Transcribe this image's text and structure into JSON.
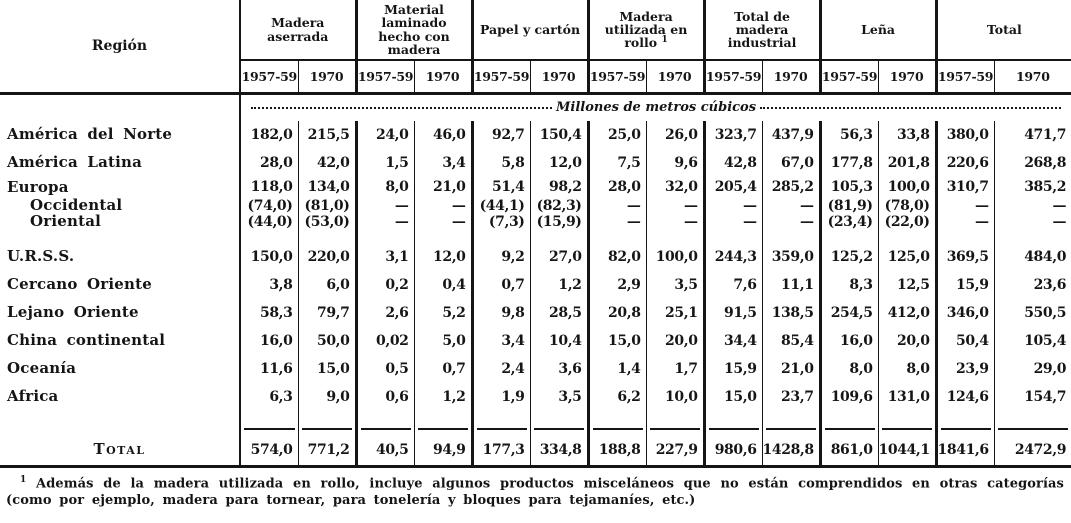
{
  "colors": {
    "ink": "#151515",
    "paper": "#ffffff"
  },
  "table": {
    "region_header": "Región",
    "units_note": "Millones de metros cúbicos",
    "col_groups": [
      {
        "label": "Madera aserrada",
        "sup": ""
      },
      {
        "label": "Material laminado hecho con madera",
        "sup": ""
      },
      {
        "label": "Papel y cartón",
        "sup": ""
      },
      {
        "label": "Madera utilizada en rollo",
        "sup": "1"
      },
      {
        "label": "Total de madera industrial",
        "sup": ""
      },
      {
        "label": "Leña",
        "sup": ""
      },
      {
        "label": "Total",
        "sup": ""
      }
    ],
    "year_labels": [
      "1957-59",
      "1970"
    ],
    "rows": [
      {
        "region": "América del Norte",
        "indent": false,
        "values": [
          "182,0",
          "215,5",
          "24,0",
          "46,0",
          "92,7",
          "150,4",
          "25,0",
          "26,0",
          "323,7",
          "437,9",
          "56,3",
          "33,8",
          "380,0",
          "471,7"
        ]
      },
      {
        "region": "América Latina",
        "indent": false,
        "values": [
          "28,0",
          "42,0",
          "1,5",
          "3,4",
          "5,8",
          "12,0",
          "7,5",
          "9,6",
          "42,8",
          "67,0",
          "177,8",
          "201,8",
          "220,6",
          "268,8"
        ]
      },
      {
        "region": "Europa",
        "indent": false,
        "values": [
          "118,0",
          "134,0",
          "8,0",
          "21,0",
          "51,4",
          "98,2",
          "28,0",
          "32,0",
          "205,4",
          "285,2",
          "105,3",
          "100,0",
          "310,7",
          "385,2"
        ]
      },
      {
        "region": "Occidental",
        "indent": true,
        "values": [
          "(74,0)",
          "(81,0)",
          "—",
          "—",
          "(44,1)",
          "(82,3)",
          "—",
          "—",
          "—",
          "—",
          "(81,9)",
          "(78,0)",
          "—",
          "—"
        ]
      },
      {
        "region": "Oriental",
        "indent": true,
        "values": [
          "(44,0)",
          "(53,0)",
          "—",
          "—",
          "(7,3)",
          "(15,9)",
          "—",
          "—",
          "—",
          "—",
          "(23,4)",
          "(22,0)",
          "—",
          "—"
        ]
      },
      {
        "region": "U.R.S.S.",
        "indent": false,
        "values": [
          "150,0",
          "220,0",
          "3,1",
          "12,0",
          "9,2",
          "27,0",
          "82,0",
          "100,0",
          "244,3",
          "359,0",
          "125,2",
          "125,0",
          "369,5",
          "484,0"
        ]
      },
      {
        "region": "Cercano Oriente",
        "indent": false,
        "values": [
          "3,8",
          "6,0",
          "0,2",
          "0,4",
          "0,7",
          "1,2",
          "2,9",
          "3,5",
          "7,6",
          "11,1",
          "8,3",
          "12,5",
          "15,9",
          "23,6"
        ]
      },
      {
        "region": "Lejano Oriente",
        "indent": false,
        "values": [
          "58,3",
          "79,7",
          "2,6",
          "5,2",
          "9,8",
          "28,5",
          "20,8",
          "25,1",
          "91,5",
          "138,5",
          "254,5",
          "412,0",
          "346,0",
          "550,5"
        ]
      },
      {
        "region": "China continental",
        "indent": false,
        "values": [
          "16,0",
          "50,0",
          "0,02",
          "5,0",
          "3,4",
          "10,4",
          "15,0",
          "20,0",
          "34,4",
          "85,4",
          "16,0",
          "20,0",
          "50,4",
          "105,4"
        ]
      },
      {
        "region": "Oceanía",
        "indent": false,
        "values": [
          "11,6",
          "15,0",
          "0,5",
          "0,7",
          "2,4",
          "3,6",
          "1,4",
          "1,7",
          "15,9",
          "21,0",
          "8,0",
          "8,0",
          "23,9",
          "29,0"
        ]
      },
      {
        "region": "Africa",
        "indent": false,
        "values": [
          "6,3",
          "9,0",
          "0,6",
          "1,2",
          "1,9",
          "3,5",
          "6,2",
          "10,0",
          "15,0",
          "23,7",
          "109,6",
          "131,0",
          "124,6",
          "154,7"
        ]
      }
    ],
    "total_row": {
      "label": "Total",
      "values": [
        "574,0",
        "771,2",
        "40,5",
        "94,9",
        "177,3",
        "334,8",
        "188,8",
        "227,9",
        "980,6",
        "1428,8",
        "861,0",
        "1044,1",
        "1841,6",
        "2472,9"
      ]
    },
    "footnote_sup": "1",
    "footnote_text": "Además de la madera utilizada en rollo, incluye algunos productos misceláneos que no están comprendidos en otras categorías (como por ejemplo, madera para tornear, para tonelería y bloques para tejamaníes, etc.)"
  }
}
